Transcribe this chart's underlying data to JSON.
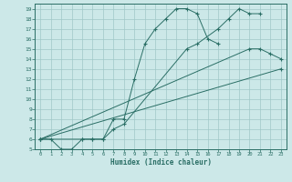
{
  "xlabel": "Humidex (Indice chaleur)",
  "bg_color": "#cce8e8",
  "grid_color": "#a0c8c8",
  "line_color": "#2a6e65",
  "xlim": [
    -0.5,
    23.5
  ],
  "ylim": [
    5,
    19.5
  ],
  "line1_x": [
    0,
    1,
    2,
    3,
    4,
    5,
    6,
    7,
    8,
    9,
    10,
    11,
    12,
    13,
    14,
    15,
    16,
    17
  ],
  "line1_y": [
    6,
    6,
    5,
    5,
    6,
    6,
    6,
    8,
    8,
    12,
    15.5,
    17,
    18,
    19,
    19,
    18.5,
    16,
    15.5
  ],
  "line2_x": [
    0,
    4,
    5,
    6,
    7,
    8,
    14,
    15,
    17,
    18,
    19,
    20,
    21
  ],
  "line2_y": [
    6,
    6,
    6,
    6,
    7,
    7.5,
    15,
    15.5,
    17,
    18,
    19,
    18.5,
    18.5
  ],
  "line3_x": [
    0,
    20,
    21,
    22,
    23
  ],
  "line3_y": [
    6,
    15,
    15,
    14.5,
    14
  ],
  "line4_x": [
    0,
    23
  ],
  "line4_y": [
    6,
    13
  ],
  "xticks": [
    0,
    1,
    2,
    3,
    4,
    5,
    6,
    7,
    8,
    9,
    10,
    11,
    12,
    13,
    14,
    15,
    16,
    17,
    18,
    19,
    20,
    21,
    22,
    23
  ],
  "yticks": [
    5,
    6,
    7,
    8,
    9,
    10,
    11,
    12,
    13,
    14,
    15,
    16,
    17,
    18,
    19
  ]
}
